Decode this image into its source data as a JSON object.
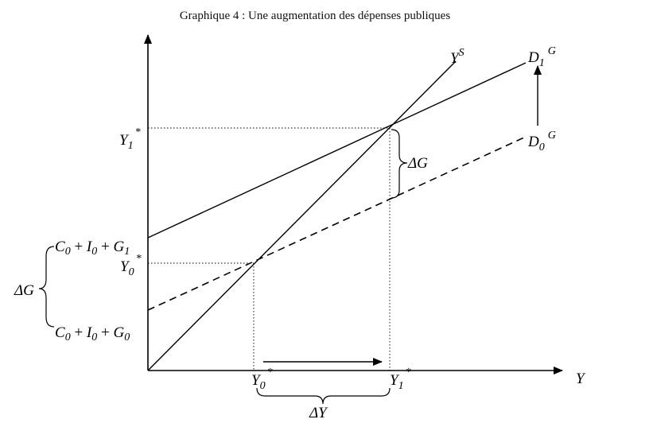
{
  "title": "Graphique 4 : Une augmentation des dépenses publiques",
  "axes": {
    "x_label_main": "Y"
  },
  "curves": {
    "supply": {
      "main": "Y",
      "sup": "S"
    },
    "d1": {
      "main": "D",
      "sub": "1",
      "sup": "G"
    },
    "d0": {
      "main": "D",
      "sub": "0",
      "sup": "G"
    }
  },
  "y_ticks": {
    "y1": {
      "main": "Y",
      "sub": "1",
      "sup": "*"
    },
    "y0": {
      "main": "Y",
      "sub": "0",
      "sup": "*"
    },
    "intercept1": {
      "c": "C",
      "c_sub": "0",
      "plus1": " + ",
      "i": "I",
      "i_sub": "0",
      "plus2": " + ",
      "g": "G",
      "g_sub": "1"
    },
    "intercept0": {
      "c": "C",
      "c_sub": "0",
      "plus1": " + ",
      "i": "I",
      "i_sub": "0",
      "plus2": " + ",
      "g": "G",
      "g_sub": "0"
    }
  },
  "x_ticks": {
    "y0": {
      "main": "Y",
      "sub": "0",
      "sup": "*"
    },
    "y1": {
      "main": "Y",
      "sub": "1",
      "sup": "*"
    }
  },
  "annotations": {
    "delta_g_right": "ΔG",
    "delta_g_left": "ΔG",
    "delta_y": "ΔY"
  }
}
